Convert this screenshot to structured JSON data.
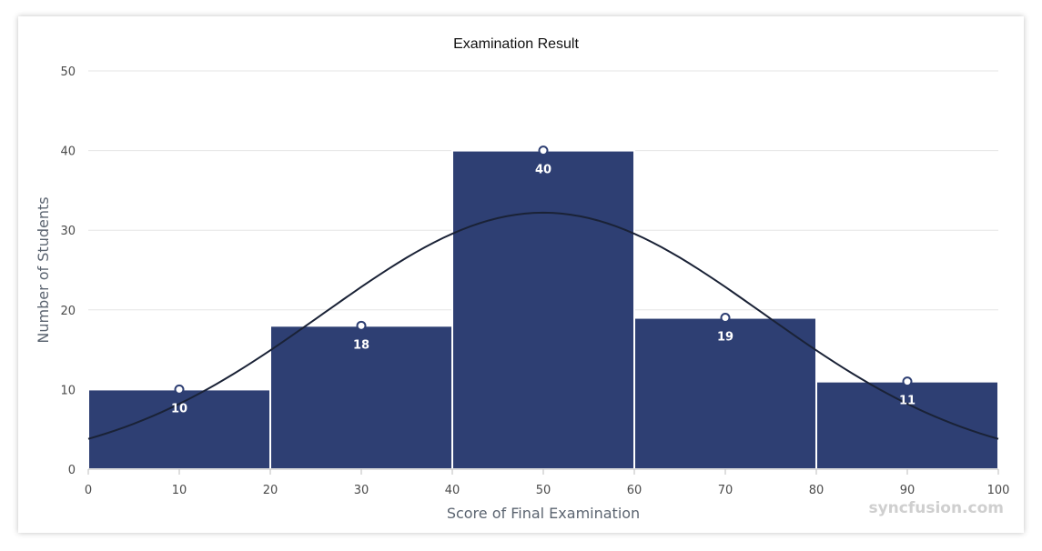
{
  "chart_data": {
    "type": "bar",
    "title": "Examination Result",
    "xlabel": "Score of Final Examination",
    "ylabel": "Number of Students",
    "xlim": [
      0,
      100
    ],
    "ylim": [
      0,
      50
    ],
    "x_ticks": [
      "0",
      "10",
      "20",
      "30",
      "40",
      "50",
      "60",
      "70",
      "80",
      "90",
      "100"
    ],
    "y_ticks": [
      "0",
      "10",
      "20",
      "30",
      "40",
      "50"
    ],
    "bins": [
      [
        0,
        20
      ],
      [
        20,
        40
      ],
      [
        40,
        60
      ],
      [
        60,
        80
      ],
      [
        80,
        100
      ]
    ],
    "categories": [
      "10",
      "30",
      "50",
      "70",
      "90"
    ],
    "values": [
      10,
      18,
      40,
      19,
      11
    ],
    "data_labels": [
      "10",
      "18",
      "40",
      "19",
      "11"
    ],
    "normal_curve": {
      "mean": 50,
      "peak": 32.2,
      "ends": 3.8
    },
    "grid": true,
    "colors": {
      "bar": "#2e3f73",
      "curve": "#1a2236",
      "grid": "#e6e6e6",
      "marker_fill": "#ffffff"
    }
  },
  "watermark": "syncfusion.com"
}
